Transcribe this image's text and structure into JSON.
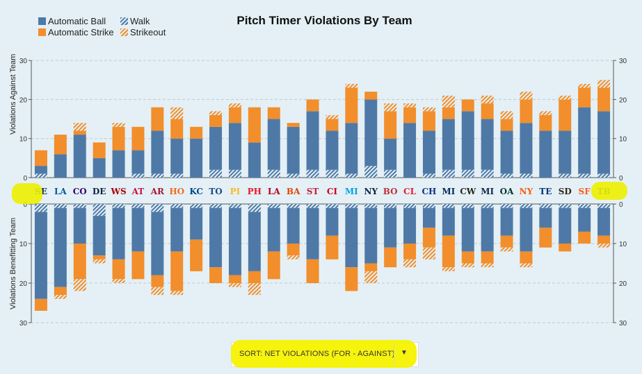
{
  "legend": [
    {
      "label": "Automatic Ball",
      "color": "#4e79a7",
      "pattern": false
    },
    {
      "label": "Walk",
      "color": "#4e79a7",
      "pattern": true
    },
    {
      "label": "Automatic Strike",
      "color": "#f28e2b",
      "pattern": false
    },
    {
      "label": "Strikeout",
      "color": "#f28e2b",
      "pattern": true
    }
  ],
  "sort": {
    "label": "SORT: NET VIOLATIONS (FOR - AGAINST)",
    "caret_icon": "caret-down-icon"
  },
  "colors": {
    "ball": "#4e79a7",
    "strike": "#f28e2b",
    "grid": "#c2c8cc",
    "background": "#e4f0f5",
    "highlight": "#f5f200"
  },
  "chart_data": {
    "type": "bar",
    "title": "Pitch Timer Violations By Team",
    "layout": "butterfly-stacked",
    "categories": [
      "SEA",
      "LAD",
      "COL",
      "DET",
      "WSH",
      "ATL",
      "ARI",
      "HOU",
      "KC",
      "TOR",
      "PIT",
      "PHI",
      "LAA",
      "BAL",
      "STL",
      "CIN",
      "MIA",
      "NYY",
      "BOS",
      "CLE",
      "CHC",
      "MIN",
      "CWS",
      "MIL",
      "OAK",
      "NYM",
      "TEX",
      "SD",
      "SF",
      "TB"
    ],
    "tick_labels": [
      "0",
      "10",
      "20",
      "30"
    ],
    "top": {
      "ylabel": "Violations Against Team",
      "ylim": [
        0,
        30
      ],
      "series": [
        {
          "name": "Walk",
          "values": [
            1,
            0,
            0,
            0,
            0,
            1,
            1,
            1,
            0,
            2,
            2,
            0,
            2,
            1,
            2,
            2,
            1,
            3,
            2,
            0,
            1,
            2,
            2,
            2,
            1,
            1,
            0,
            1,
            1,
            1
          ]
        },
        {
          "name": "Automatic Ball",
          "values": [
            2,
            6,
            11,
            5,
            7,
            6,
            11,
            9,
            10,
            11,
            12,
            9,
            13,
            12,
            15,
            10,
            13,
            17,
            8,
            14,
            11,
            13,
            15,
            13,
            11,
            13,
            12,
            11,
            17,
            16
          ]
        },
        {
          "name": "Automatic Strike",
          "values": [
            4,
            5,
            1,
            4,
            6,
            6,
            6,
            5,
            3,
            3,
            4,
            9,
            3,
            1,
            3,
            3,
            9,
            2,
            7,
            4,
            5,
            3,
            3,
            4,
            3,
            6,
            4,
            8,
            5,
            6
          ]
        },
        {
          "name": "Strikeout",
          "values": [
            0,
            0,
            2,
            0,
            1,
            0,
            0,
            3,
            0,
            1,
            1,
            0,
            0,
            0,
            0,
            1,
            1,
            0,
            2,
            1,
            1,
            3,
            0,
            2,
            2,
            2,
            1,
            1,
            1,
            2
          ]
        }
      ]
    },
    "bottom": {
      "ylabel": "Violations Benefitting Team",
      "ylim": [
        0,
        30
      ],
      "series": [
        {
          "name": "Walk",
          "values": [
            2,
            1,
            1,
            3,
            1,
            1,
            2,
            1,
            1,
            1,
            1,
            2,
            1,
            1,
            1,
            1,
            1,
            1,
            1,
            1,
            1,
            1,
            1,
            1,
            1,
            1,
            1,
            1,
            1,
            1
          ]
        },
        {
          "name": "Automatic Ball",
          "values": [
            22,
            20,
            9,
            10,
            13,
            11,
            16,
            11,
            8,
            15,
            17,
            15,
            11,
            9,
            13,
            7,
            15,
            14,
            10,
            9,
            5,
            7,
            11,
            11,
            7,
            11,
            5,
            9,
            6,
            7
          ]
        },
        {
          "name": "Automatic Strike",
          "values": [
            3,
            2,
            9,
            1,
            5,
            7,
            3,
            10,
            8,
            4,
            2,
            3,
            7,
            3,
            6,
            6,
            6,
            2,
            5,
            4,
            5,
            8,
            3,
            3,
            3,
            3,
            5,
            2,
            3,
            2
          ]
        },
        {
          "name": "Strikeout",
          "values": [
            0,
            1,
            3,
            1,
            1,
            0,
            2,
            1,
            0,
            0,
            1,
            3,
            0,
            1,
            0,
            0,
            0,
            3,
            0,
            2,
            3,
            1,
            1,
            1,
            1,
            1,
            0,
            0,
            0,
            1
          ]
        }
      ]
    }
  }
}
